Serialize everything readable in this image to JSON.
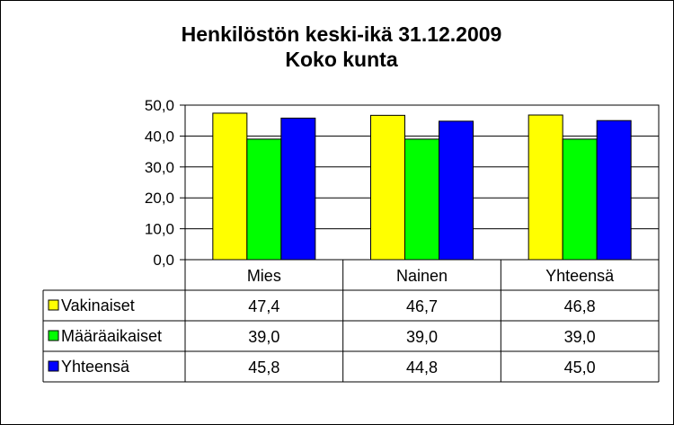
{
  "chart_data": {
    "type": "bar",
    "title": "Henkilöstön keski-ikä 31.12.2009",
    "subtitle": "Koko kunta",
    "categories": [
      "Mies",
      "Nainen",
      "Yhteensä"
    ],
    "series": [
      {
        "name": "Vakinaiset",
        "values": [
          47.4,
          46.7,
          46.8
        ],
        "labels": [
          "47,4",
          "46,7",
          "46,8"
        ],
        "color": "#ffff00"
      },
      {
        "name": "Määräaikaiset",
        "values": [
          39.0,
          39.0,
          39.0
        ],
        "labels": [
          "39,0",
          "39,0",
          "39,0"
        ],
        "color": "#00ff00"
      },
      {
        "name": "Yhteensä",
        "values": [
          45.8,
          44.8,
          45.0
        ],
        "labels": [
          "45,8",
          "44,8",
          "45,0"
        ],
        "color": "#0000ff"
      }
    ],
    "ylim": [
      0,
      50
    ],
    "yticks": [
      0,
      10,
      20,
      30,
      40,
      50
    ],
    "ytick_labels": [
      "0,0",
      "10,0",
      "20,0",
      "30,0",
      "40,0",
      "50,0"
    ],
    "grid": true,
    "legend": "data-table"
  }
}
